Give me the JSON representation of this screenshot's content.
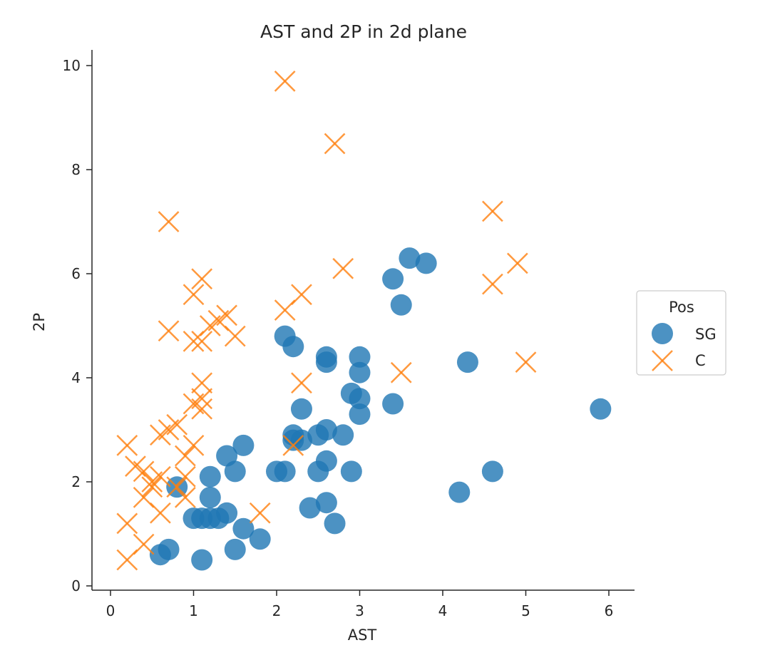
{
  "chart_data": {
    "type": "scatter",
    "title": "AST and 2P in 2d plane",
    "xlabel": "AST",
    "ylabel": "2P",
    "xlim": [
      -0.2,
      6.3
    ],
    "ylim": [
      -0.1,
      10.3
    ],
    "xticks": [
      "0",
      "1",
      "2",
      "3",
      "4",
      "5",
      "6"
    ],
    "yticks": [
      "0",
      "2",
      "4",
      "6",
      "8",
      "10"
    ],
    "grid": false,
    "legend": {
      "title": "Pos",
      "placement": "right"
    },
    "series": [
      {
        "name": "SG",
        "marker": "circle",
        "color": "#1f77b4",
        "points": [
          [
            0.6,
            0.6
          ],
          [
            0.7,
            0.7
          ],
          [
            0.8,
            1.9
          ],
          [
            1.0,
            1.3
          ],
          [
            1.1,
            1.3
          ],
          [
            1.2,
            1.3
          ],
          [
            1.3,
            1.3
          ],
          [
            1.4,
            1.4
          ],
          [
            1.1,
            0.5
          ],
          [
            1.2,
            1.7
          ],
          [
            1.2,
            2.1
          ],
          [
            1.4,
            2.5
          ],
          [
            1.5,
            2.2
          ],
          [
            1.6,
            2.7
          ],
          [
            1.6,
            1.1
          ],
          [
            1.5,
            0.7
          ],
          [
            1.8,
            0.9
          ],
          [
            2.0,
            2.2
          ],
          [
            2.1,
            2.2
          ],
          [
            2.1,
            4.8
          ],
          [
            2.2,
            4.6
          ],
          [
            2.2,
            2.9
          ],
          [
            2.2,
            2.8
          ],
          [
            2.3,
            3.4
          ],
          [
            2.3,
            2.8
          ],
          [
            2.4,
            1.5
          ],
          [
            2.5,
            2.2
          ],
          [
            2.5,
            2.9
          ],
          [
            2.6,
            3.0
          ],
          [
            2.6,
            2.4
          ],
          [
            2.6,
            1.6
          ],
          [
            2.7,
            1.2
          ],
          [
            2.6,
            4.4
          ],
          [
            2.6,
            4.3
          ],
          [
            2.8,
            2.9
          ],
          [
            2.9,
            3.7
          ],
          [
            2.9,
            2.2
          ],
          [
            3.0,
            3.6
          ],
          [
            3.0,
            3.3
          ],
          [
            3.0,
            4.1
          ],
          [
            3.0,
            4.4
          ],
          [
            3.4,
            3.5
          ],
          [
            3.4,
            5.9
          ],
          [
            3.5,
            5.4
          ],
          [
            3.6,
            6.3
          ],
          [
            3.8,
            6.2
          ],
          [
            4.2,
            1.8
          ],
          [
            4.3,
            4.3
          ],
          [
            4.6,
            2.2
          ],
          [
            5.9,
            3.4
          ]
        ]
      },
      {
        "name": "C",
        "marker": "x",
        "color": "#ff7f0e",
        "points": [
          [
            0.2,
            0.5
          ],
          [
            0.2,
            1.2
          ],
          [
            0.2,
            2.7
          ],
          [
            0.3,
            2.3
          ],
          [
            0.4,
            2.2
          ],
          [
            0.4,
            1.7
          ],
          [
            0.4,
            0.8
          ],
          [
            0.5,
            2.0
          ],
          [
            0.5,
            1.9
          ],
          [
            0.6,
            2.1
          ],
          [
            0.6,
            1.4
          ],
          [
            0.6,
            2.9
          ],
          [
            0.7,
            3.0
          ],
          [
            0.7,
            4.9
          ],
          [
            0.7,
            7.0
          ],
          [
            0.8,
            3.1
          ],
          [
            0.8,
            1.9
          ],
          [
            0.9,
            1.7
          ],
          [
            0.9,
            2.1
          ],
          [
            0.9,
            2.5
          ],
          [
            1.0,
            2.7
          ],
          [
            1.0,
            3.5
          ],
          [
            1.0,
            4.7
          ],
          [
            1.0,
            5.6
          ],
          [
            1.1,
            3.4
          ],
          [
            1.1,
            3.6
          ],
          [
            1.1,
            3.9
          ],
          [
            1.1,
            4.7
          ],
          [
            1.1,
            5.9
          ],
          [
            1.2,
            5.0
          ],
          [
            1.3,
            5.1
          ],
          [
            1.4,
            5.2
          ],
          [
            1.5,
            4.8
          ],
          [
            1.8,
            1.4
          ],
          [
            2.1,
            5.3
          ],
          [
            2.1,
            9.7
          ],
          [
            2.2,
            2.7
          ],
          [
            2.3,
            3.9
          ],
          [
            2.3,
            5.6
          ],
          [
            2.7,
            8.5
          ],
          [
            2.8,
            6.1
          ],
          [
            3.5,
            4.1
          ],
          [
            4.6,
            5.8
          ],
          [
            4.6,
            7.2
          ],
          [
            4.9,
            6.2
          ],
          [
            5.0,
            4.3
          ]
        ]
      }
    ]
  }
}
